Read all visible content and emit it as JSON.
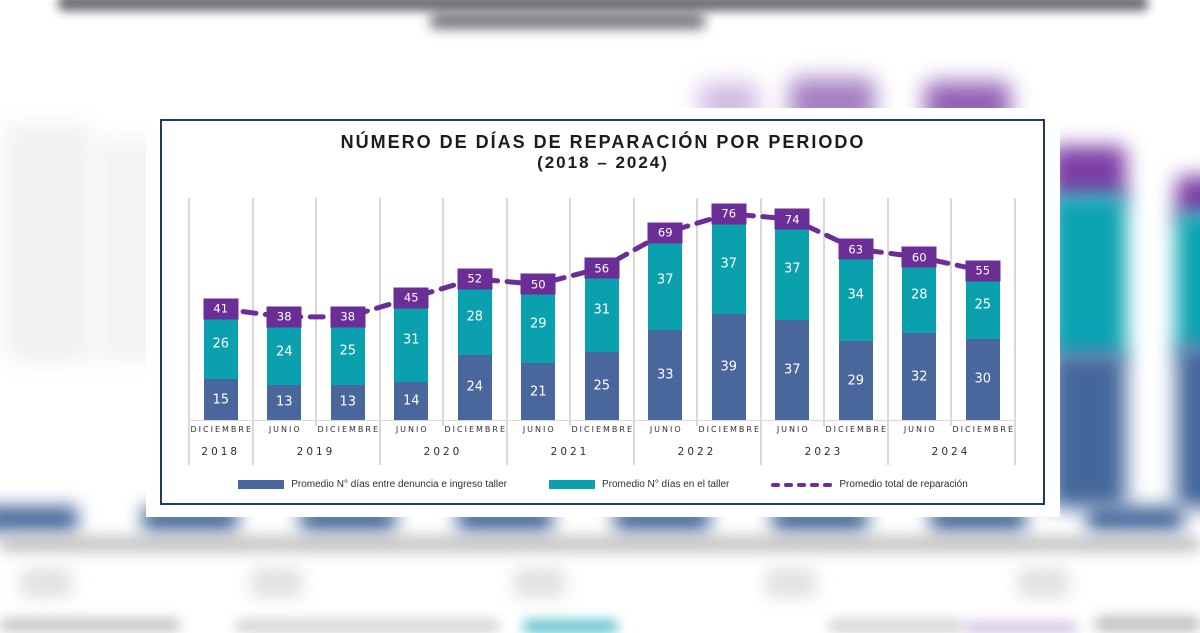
{
  "chart_data": {
    "type": "bar",
    "subtype": "stacked-bar-with-total-line",
    "title": "NÚMERO DE DÍAS DE REPARACIÓN POR PERIODO",
    "subtitle": "(2018 – 2024)",
    "categories": [
      "DICIEMBRE",
      "JUNIO",
      "DICIEMBRE",
      "JUNIO",
      "DICIEMBRE",
      "JUNIO",
      "DICIEMBRE",
      "JUNIO",
      "DICIEMBRE",
      "JUNIO",
      "DICIEMBRE",
      "JUNIO",
      "DICIEMBRE"
    ],
    "year_groups": [
      {
        "label": "2018",
        "span": 1
      },
      {
        "label": "2019",
        "span": 2
      },
      {
        "label": "2020",
        "span": 2
      },
      {
        "label": "2021",
        "span": 2
      },
      {
        "label": "2022",
        "span": 2
      },
      {
        "label": "2023",
        "span": 2
      },
      {
        "label": "2024",
        "span": 2
      }
    ],
    "series": [
      {
        "name": "Promedio N° días entre denuncia e ingreso taller",
        "type": "bar",
        "color": "#49679C",
        "values": [
          15,
          13,
          13,
          14,
          24,
          21,
          25,
          33,
          39,
          37,
          29,
          32,
          30
        ]
      },
      {
        "name": "Promedio N° días en el taller",
        "type": "bar",
        "color": "#0AA0AD",
        "values": [
          26,
          24,
          25,
          31,
          28,
          29,
          31,
          37,
          37,
          37,
          34,
          28,
          25
        ]
      },
      {
        "name": "Promedio total de reparación",
        "type": "dashed-line",
        "color": "#6B2D96",
        "values": [
          41,
          38,
          38,
          45,
          52,
          50,
          56,
          69,
          76,
          74,
          63,
          60,
          55
        ]
      }
    ],
    "stacked": true,
    "legend_position": "bottom",
    "value_axis_visible": false,
    "grid": "vertical-category-separators",
    "colors": {
      "panel_border": "#1F3864",
      "gridline": "#D9D9D9",
      "title_text": "#1b1b22"
    }
  }
}
